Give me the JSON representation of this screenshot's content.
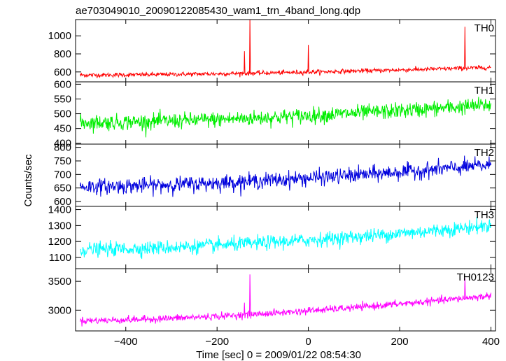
{
  "chart_data": {
    "type": "line",
    "title": "ae703049010_20090122085430_wam1_trn_4band_long.qdp",
    "xlabel": "Time [sec] 0 = 2009/01/22 08:54:30",
    "ylabel": "Counts/sec",
    "xlim": [
      -510,
      410
    ],
    "xticks": [
      -400,
      -200,
      0,
      200,
      400
    ],
    "panels": [
      {
        "name": "TH0",
        "color": "#ff0000",
        "ylim": [
          490,
          1180
        ],
        "yticks": [
          600,
          800,
          1000
        ],
        "baseline_start": 565,
        "baseline_end": 650,
        "noise": 22,
        "spikes": [
          [
            -140,
            830
          ],
          [
            -128,
            1190
          ],
          [
            0,
            900
          ],
          [
            343,
            1100
          ]
        ]
      },
      {
        "name": "TH1",
        "color": "#00ee00",
        "ylim": [
          397,
          608
        ],
        "yticks": [
          400,
          450,
          500,
          550,
          600
        ],
        "baseline_start": 470,
        "baseline_end": 530,
        "noise": 24,
        "spikes": []
      },
      {
        "name": "TH2",
        "color": "#0000dd",
        "ylim": [
          582,
          812
        ],
        "yticks": [
          600,
          650,
          700,
          750,
          800
        ],
        "baseline_start": 655,
        "baseline_end": 735,
        "noise": 26,
        "spikes": []
      },
      {
        "name": "TH3",
        "color": "#00ffff",
        "ylim": [
          1030,
          1420
        ],
        "yticks": [
          1100,
          1200,
          1300,
          1400
        ],
        "baseline_start": 1150,
        "baseline_end": 1300,
        "noise": 40,
        "spikes": []
      },
      {
        "name": "TH0123",
        "color": "#ff00ff",
        "ylim": [
          2640,
          3720
        ],
        "yticks": [
          3000,
          3500
        ],
        "baseline_start": 2820,
        "baseline_end": 3250,
        "noise": 55,
        "spikes": [
          [
            -140,
            3130
          ],
          [
            -128,
            3620
          ],
          [
            0,
            3050
          ],
          [
            343,
            3550
          ]
        ]
      }
    ]
  }
}
